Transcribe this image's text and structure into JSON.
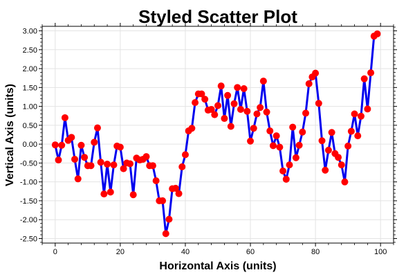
{
  "chart_data": {
    "type": "scatter",
    "title": "Styled Scatter Plot",
    "xlabel": "Horizontal Axis (units)",
    "ylabel": "Vertical Axis (units)",
    "xlim": [
      -4,
      104
    ],
    "ylim": [
      -2.62,
      3.12
    ],
    "xticks": [
      0,
      20,
      40,
      60,
      80,
      100
    ],
    "xtick_labels": [
      "0",
      "20",
      "40",
      "60",
      "80",
      "100"
    ],
    "yticks": [
      -2.5,
      -2.0,
      -1.5,
      -1.0,
      -0.5,
      0.0,
      0.5,
      1.0,
      1.5,
      2.0,
      2.5,
      3.0
    ],
    "ytick_labels": [
      "-2.50",
      "-2.00",
      "-1.50",
      "-1.00",
      "-0.50",
      "0.00",
      "0.50",
      "1.00",
      "1.50",
      "2.00",
      "2.50",
      "3.00"
    ],
    "grid": true,
    "line_color": "#0000ee",
    "marker_color": "#ff0000",
    "x": [
      0,
      1,
      2,
      3,
      4,
      5,
      6,
      7,
      8,
      9,
      10,
      11,
      12,
      13,
      14,
      15,
      16,
      17,
      18,
      19,
      20,
      21,
      22,
      23,
      24,
      25,
      26,
      27,
      28,
      29,
      30,
      31,
      32,
      33,
      34,
      35,
      36,
      37,
      38,
      39,
      40,
      41,
      42,
      43,
      44,
      45,
      46,
      47,
      48,
      49,
      50,
      51,
      52,
      53,
      54,
      55,
      56,
      57,
      58,
      59,
      60,
      61,
      62,
      63,
      64,
      65,
      66,
      67,
      68,
      69,
      70,
      71,
      72,
      73,
      74,
      75,
      76,
      77,
      78,
      79,
      80,
      81,
      82,
      83,
      84,
      85,
      86,
      87,
      88,
      89,
      90,
      91,
      92,
      93,
      94,
      95,
      96,
      97,
      98,
      99
    ],
    "y": [
      -0.02,
      -0.42,
      -0.03,
      0.7,
      0.1,
      0.18,
      -0.4,
      -0.92,
      -0.03,
      -0.35,
      -0.57,
      -0.57,
      0.05,
      0.43,
      -0.48,
      -1.32,
      -0.53,
      -1.27,
      -0.55,
      -0.05,
      -0.08,
      -0.65,
      -0.5,
      -0.52,
      -1.34,
      -0.37,
      -0.42,
      -0.4,
      -0.33,
      -0.57,
      -0.57,
      -0.97,
      -1.5,
      -1.5,
      -2.37,
      -1.99,
      -1.18,
      -1.17,
      -1.31,
      -0.6,
      -0.28,
      0.35,
      0.42,
      1.1,
      1.33,
      1.33,
      1.19,
      0.9,
      0.92,
      0.78,
      1.02,
      1.54,
      0.68,
      1.29,
      0.47,
      1.07,
      1.5,
      0.92,
      1.47,
      0.87,
      0.08,
      0.42,
      0.8,
      0.97,
      1.67,
      0.85,
      0.35,
      -0.04,
      0.22,
      -0.08,
      -0.71,
      -0.93,
      -0.55,
      0.45,
      -0.36,
      -0.03,
      0.32,
      0.82,
      1.6,
      1.78,
      1.88,
      1.08,
      0.09,
      -0.69,
      -0.16,
      0.31,
      -0.25,
      -0.35,
      -0.55,
      -1.0,
      -0.05,
      0.34,
      0.8,
      0.22,
      0.74,
      1.73,
      0.93,
      1.89,
      2.86,
      2.92
    ]
  }
}
